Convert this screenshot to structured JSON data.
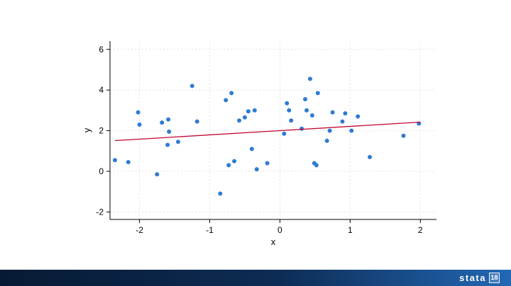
{
  "page": {
    "background": "#ffffff"
  },
  "footer": {
    "brand": "stata",
    "version": "18",
    "gradient_left": "#071a33",
    "gradient_mid": "#0d2c55",
    "gradient_right": "#2268b4"
  },
  "chart_data": {
    "type": "scatter",
    "title": "",
    "xlabel": "x",
    "ylabel": "y",
    "x_ticks": [
      -2,
      -1,
      0,
      1,
      2
    ],
    "y_ticks": [
      -2,
      0,
      2,
      4,
      6
    ],
    "xlim": [
      -2.42,
      2.23
    ],
    "ylim": [
      -2.37,
      6.41
    ],
    "grid": true,
    "legend": "none",
    "colors": {
      "grid": "#e2e2e2",
      "axis": "#000000",
      "tick_label": "#000000"
    },
    "series": [
      {
        "name": "scatter",
        "type": "scatter",
        "color": "#2e7bd4",
        "points": [
          [
            -2.35,
            0.55
          ],
          [
            -2.16,
            0.45
          ],
          [
            -2.02,
            2.9
          ],
          [
            -2.0,
            2.3
          ],
          [
            -1.75,
            -0.15
          ],
          [
            -1.68,
            2.4
          ],
          [
            -1.6,
            1.3
          ],
          [
            -1.59,
            2.55
          ],
          [
            -1.58,
            1.95
          ],
          [
            -1.45,
            1.45
          ],
          [
            -1.25,
            4.2
          ],
          [
            -1.18,
            2.45
          ],
          [
            -0.85,
            -1.1
          ],
          [
            -0.77,
            3.5
          ],
          [
            -0.73,
            0.3
          ],
          [
            -0.69,
            3.85
          ],
          [
            -0.65,
            0.5
          ],
          [
            -0.58,
            2.5
          ],
          [
            -0.5,
            2.65
          ],
          [
            -0.45,
            2.95
          ],
          [
            -0.4,
            1.1
          ],
          [
            -0.36,
            3.0
          ],
          [
            -0.33,
            0.1
          ],
          [
            -0.18,
            0.4
          ],
          [
            0.06,
            1.85
          ],
          [
            0.1,
            3.35
          ],
          [
            0.13,
            3.0
          ],
          [
            0.16,
            2.5
          ],
          [
            0.31,
            2.1
          ],
          [
            0.36,
            3.55
          ],
          [
            0.38,
            3.0
          ],
          [
            0.43,
            4.55
          ],
          [
            0.46,
            2.75
          ],
          [
            0.49,
            0.4
          ],
          [
            0.52,
            0.3
          ],
          [
            0.54,
            3.85
          ],
          [
            0.67,
            1.5
          ],
          [
            0.71,
            2.0
          ],
          [
            0.75,
            2.9
          ],
          [
            0.89,
            2.45
          ],
          [
            0.93,
            2.85
          ],
          [
            1.02,
            2.0
          ],
          [
            1.11,
            2.7
          ],
          [
            1.28,
            0.7
          ],
          [
            1.76,
            1.75
          ],
          [
            1.98,
            2.35
          ]
        ]
      },
      {
        "name": "linear-fit",
        "type": "line",
        "color": "#c10534",
        "points": [
          [
            -2.35,
            1.51
          ],
          [
            2.0,
            2.42
          ]
        ]
      }
    ]
  }
}
